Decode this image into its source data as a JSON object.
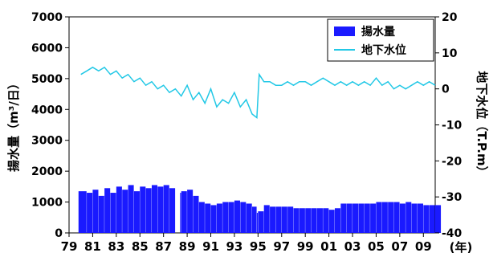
{
  "chart_data": {
    "type": "bar+line",
    "x_tick_labels": [
      "79",
      "81",
      "83",
      "85",
      "87",
      "89",
      "91",
      "93",
      "95",
      "97",
      "99",
      "01",
      "03",
      "05",
      "07",
      "09"
    ],
    "x_unit": "(年)",
    "y_left": {
      "label": "揚水量（m³/日）",
      "ylim": [
        0,
        7000
      ],
      "ticks": [
        0,
        1000,
        2000,
        3000,
        4000,
        5000,
        6000,
        7000
      ]
    },
    "y_right": {
      "label": "地下水位（T.P.m）",
      "ylim": [
        -40,
        20
      ],
      "ticks": [
        -40,
        -30,
        -20,
        -10,
        0,
        10,
        20
      ]
    },
    "legend": {
      "position": "top-right",
      "bar_label": "揚水量",
      "line_label": "地下水位"
    },
    "colors": {
      "bars": "#1a1aff",
      "line": "#22c8e6"
    },
    "series": [
      {
        "name": "揚水量",
        "kind": "bar",
        "axis": "left",
        "x": [
          1979.8,
          1980.5,
          1981.0,
          1981.5,
          1982.0,
          1982.5,
          1983.0,
          1983.5,
          1984.0,
          1984.5,
          1985.0,
          1985.5,
          1986.0,
          1986.5,
          1987.0,
          1987.5,
          1988.0,
          1988.4,
          1988.5,
          1989.0,
          1989.5,
          1990.0,
          1990.5,
          1991.0,
          1991.5,
          1992.0,
          1992.5,
          1993.0,
          1993.5,
          1994.0,
          1994.5,
          1994.9,
          1995.0,
          1995.5,
          1996.0,
          1996.5,
          1997.0,
          1997.5,
          1998.0,
          1998.5,
          1999.0,
          1999.5,
          2000.0,
          2000.5,
          2001.0,
          2001.5,
          2002.0,
          2002.5,
          2003.0,
          2003.5,
          2004.0,
          2004.5,
          2005.0,
          2005.5,
          2006.0,
          2006.5,
          2007.0,
          2007.5,
          2008.0,
          2008.5,
          2009.0,
          2009.5,
          2010.0
        ],
        "values": [
          1350,
          1300,
          1400,
          1200,
          1450,
          1300,
          1500,
          1400,
          1550,
          1350,
          1500,
          1450,
          1550,
          1500,
          1550,
          1450,
          0,
          1300,
          1350,
          1400,
          1200,
          1000,
          950,
          900,
          950,
          1000,
          1000,
          1050,
          1000,
          950,
          850,
          650,
          700,
          900,
          850,
          850,
          850,
          850,
          800,
          800,
          800,
          800,
          800,
          800,
          750,
          800,
          950,
          950,
          950,
          950,
          950,
          950,
          1000,
          1000,
          1000,
          1000,
          950,
          1000,
          950,
          950,
          900,
          900,
          900
        ]
      },
      {
        "name": "地下水位",
        "kind": "line",
        "axis": "right",
        "x": [
          1980.0,
          1980.5,
          1981.0,
          1981.5,
          1982.0,
          1982.5,
          1983.0,
          1983.5,
          1984.0,
          1984.5,
          1985.0,
          1985.5,
          1986.0,
          1986.5,
          1987.0,
          1987.5,
          1988.0,
          1988.5,
          1989.0,
          1989.5,
          1990.0,
          1990.5,
          1991.0,
          1991.5,
          1992.0,
          1992.5,
          1993.0,
          1993.5,
          1994.0,
          1994.5,
          1994.9,
          1995.1,
          1995.5,
          1996.0,
          1996.5,
          1997.0,
          1997.5,
          1998.0,
          1998.5,
          1999.0,
          1999.5,
          2000.0,
          2000.5,
          2001.0,
          2001.5,
          2002.0,
          2002.5,
          2003.0,
          2003.5,
          2004.0,
          2004.5,
          2005.0,
          2005.5,
          2006.0,
          2006.5,
          2007.0,
          2007.5,
          2008.0,
          2008.5,
          2009.0,
          2009.5,
          2010.0
        ],
        "values": [
          4,
          5,
          6,
          5,
          6,
          4,
          5,
          3,
          4,
          2,
          3,
          1,
          2,
          0,
          1,
          -1,
          0,
          -2,
          1,
          -3,
          -1,
          -4,
          0,
          -5,
          -3,
          -4,
          -1,
          -5,
          -3,
          -7,
          -8,
          4,
          2,
          2,
          1,
          1,
          2,
          1,
          2,
          2,
          1,
          2,
          3,
          2,
          1,
          2,
          1,
          2,
          1,
          2,
          1,
          3,
          1,
          2,
          0,
          1,
          0,
          1,
          2,
          1,
          2,
          1
        ]
      }
    ]
  }
}
